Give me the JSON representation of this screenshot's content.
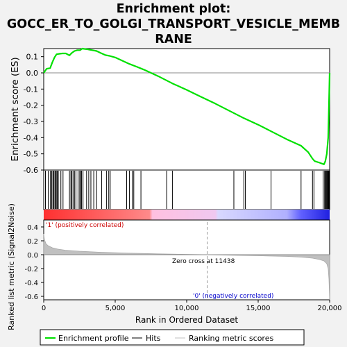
{
  "chart_data": {
    "type": "line",
    "title_lines": [
      "Enrichment plot:",
      "GOCC_ER_TO_GOLGI_TRANSPORT_VESICLE_MEMB",
      "RANE"
    ],
    "top_panel": {
      "ylabel": "Enrichment score (ES)",
      "ylim": [
        -0.6,
        0.15
      ],
      "yticks": [
        "0.1",
        "0.0",
        "-0.1",
        "-0.2",
        "-0.3",
        "-0.4",
        "-0.5",
        "-0.6"
      ],
      "series": [
        {
          "name": "Enrichment profile",
          "color": "#00e000",
          "x": [
            0,
            200,
            450,
            600,
            750,
            900,
            1100,
            1300,
            1550,
            1800,
            1950,
            2150,
            2350,
            2550,
            2700,
            2850,
            3100,
            3400,
            3700,
            4000,
            4300,
            4600,
            5000,
            5500,
            6000,
            6500,
            7000,
            8000,
            9000,
            10000,
            11000,
            12000,
            13000,
            14000,
            15000,
            16000,
            17000,
            18000,
            18500,
            18800,
            18950,
            19300,
            19600,
            19700,
            19800,
            19900,
            19950,
            20000
          ],
          "values": [
            0.0,
            0.025,
            0.03,
            0.065,
            0.095,
            0.115,
            0.118,
            0.12,
            0.12,
            0.108,
            0.122,
            0.135,
            0.14,
            0.14,
            0.15,
            0.148,
            0.145,
            0.14,
            0.135,
            0.122,
            0.11,
            0.105,
            0.095,
            0.075,
            0.055,
            0.038,
            0.02,
            -0.02,
            -0.065,
            -0.105,
            -0.148,
            -0.19,
            -0.235,
            -0.28,
            -0.32,
            -0.365,
            -0.41,
            -0.45,
            -0.49,
            -0.53,
            -0.545,
            -0.555,
            -0.565,
            -0.545,
            -0.5,
            -0.4,
            -0.2,
            0.0
          ]
        }
      ]
    },
    "hits_panel": {
      "hit_positions": [
        120,
        320,
        470,
        560,
        640,
        700,
        780,
        840,
        880,
        950,
        1020,
        1200,
        1350,
        1800,
        1900,
        1960,
        2050,
        2150,
        2250,
        2400,
        2520,
        2600,
        2650,
        2750,
        3000,
        3150,
        3300,
        3500,
        3700,
        4050,
        4400,
        4550,
        4650,
        5800,
        6000,
        6200,
        6300,
        6800,
        8600,
        9000,
        13300,
        14000,
        14100,
        15900,
        18000,
        18800,
        18900,
        19550,
        19650,
        19700,
        19750,
        19800,
        19850,
        19880,
        19910,
        19940,
        19970,
        19990
      ]
    },
    "bottom_panel": {
      "ylabel": "Ranked list metric (Signal2Noise)",
      "ylim": [
        -0.65,
        0.5
      ],
      "yticks": [
        "0.4",
        "0.2",
        "0.0",
        "-0.2",
        "-0.4",
        "-0.6"
      ],
      "series": [
        {
          "name": "Ranking metric scores",
          "color": "#c0c0c0",
          "x": [
            0,
            50,
            150,
            300,
            600,
            1000,
            1500,
            2500,
            4000,
            6000,
            8000,
            10000,
            11438,
            13000,
            15000,
            17000,
            18000,
            18800,
            19300,
            19600,
            19800,
            19900,
            19950,
            20000
          ],
          "values": [
            0.3,
            0.22,
            0.16,
            0.13,
            0.1,
            0.08,
            0.065,
            0.05,
            0.035,
            0.022,
            0.012,
            0.005,
            0.0,
            -0.007,
            -0.015,
            -0.025,
            -0.035,
            -0.05,
            -0.07,
            -0.09,
            -0.13,
            -0.2,
            -0.35,
            -0.65
          ]
        }
      ],
      "zero_cross_label": "Zero cross at 11438",
      "positive_label": "'1' (positively correlated)",
      "negative_label": "'0' (negatively correlated)"
    },
    "x_axis": {
      "xlabel": "Rank in Ordered Dataset",
      "xlim": [
        0,
        20000
      ],
      "xticks": [
        "0",
        "5,000",
        "10,000",
        "15,000",
        "20,000"
      ]
    },
    "legend": {
      "placement": "bottom",
      "items": [
        {
          "label": "Enrichment profile",
          "color": "#00e000"
        },
        {
          "label": "Hits",
          "color": "#000000"
        },
        {
          "label": "Ranking metric scores",
          "color": "#c0c0c0"
        }
      ]
    }
  }
}
